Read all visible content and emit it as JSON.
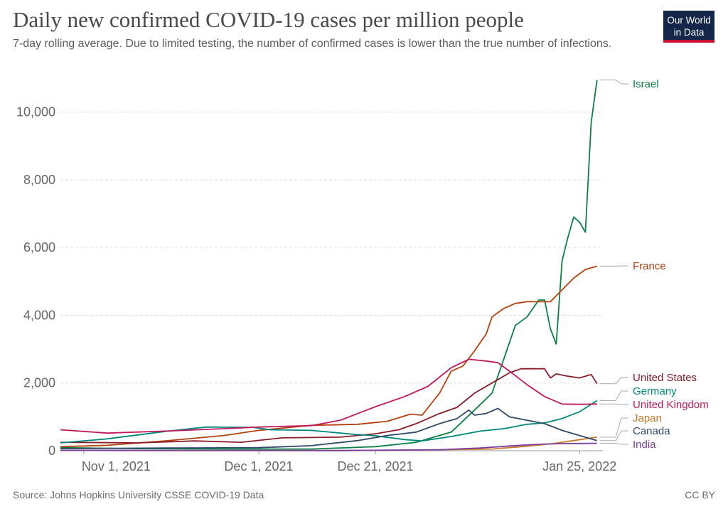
{
  "header": {
    "title": "Daily new confirmed COVID-19 cases per million people",
    "subtitle": "7-day rolling average. Due to limited testing, the number of confirmed cases is lower than the true number of infections.",
    "logo_line1": "Our World",
    "logo_line2": "in Data"
  },
  "footer": {
    "source": "Source: Johns Hopkins University CSSE COVID-19 Data",
    "license": "CC BY"
  },
  "colors": {
    "Israel": "#0b8043",
    "France": "#b5400e",
    "United States": "#8a1c2a",
    "Germany": "#00897b",
    "United Kingdom": "#c2185b",
    "Japan": "#c97a2a",
    "Canada": "#2e4a6b",
    "India": "#7b3fa0"
  },
  "chart_data": {
    "type": "line",
    "title": "Daily new confirmed COVID-19 cases per million people",
    "subtitle": "7-day rolling average. Due to limited testing, the number of confirmed cases is lower than the true number of infections.",
    "ylim": [
      0,
      11000
    ],
    "yticks": [
      0,
      2000,
      4000,
      6000,
      8000,
      10000
    ],
    "ytick_labels": [
      "0",
      "2,000",
      "4,000",
      "6,000",
      "8,000",
      "10,000"
    ],
    "xlim": [
      "2021-10-28",
      "2022-01-29"
    ],
    "xticks": [
      "2021-11-01",
      "2021-12-01",
      "2021-12-21",
      "2022-01-25"
    ],
    "xtick_labels": [
      "Nov 1, 2021",
      "Dec 1, 2021",
      "Dec 21, 2021",
      "Jan 25, 2022"
    ],
    "grid": true,
    "legend": "right end labels",
    "series": [
      {
        "name": "Israel",
        "points": [
          [
            "2021-10-28",
            90
          ],
          [
            "2021-11-10",
            60
          ],
          [
            "2021-11-25",
            50
          ],
          [
            "2021-12-10",
            50
          ],
          [
            "2021-12-21",
            120
          ],
          [
            "2021-12-28",
            250
          ],
          [
            "2022-01-03",
            550
          ],
          [
            "2022-01-07",
            1200
          ],
          [
            "2022-01-10",
            1700
          ],
          [
            "2022-01-12",
            2700
          ],
          [
            "2022-01-14",
            3700
          ],
          [
            "2022-01-16",
            3950
          ],
          [
            "2022-01-18",
            4450
          ],
          [
            "2022-01-19",
            4450
          ],
          [
            "2022-01-20",
            3600
          ],
          [
            "2022-01-21",
            3150
          ],
          [
            "2022-01-22",
            5600
          ],
          [
            "2022-01-23",
            6300
          ],
          [
            "2022-01-24",
            6900
          ],
          [
            "2022-01-25",
            6750
          ],
          [
            "2022-01-26",
            6450
          ],
          [
            "2022-01-27",
            9700
          ],
          [
            "2022-01-28",
            10950
          ]
        ]
      },
      {
        "name": "France",
        "points": [
          [
            "2021-10-28",
            120
          ],
          [
            "2021-11-05",
            160
          ],
          [
            "2021-11-15",
            290
          ],
          [
            "2021-11-25",
            450
          ],
          [
            "2021-12-01",
            600
          ],
          [
            "2021-12-10",
            750
          ],
          [
            "2021-12-18",
            780
          ],
          [
            "2021-12-23",
            870
          ],
          [
            "2021-12-27",
            1080
          ],
          [
            "2021-12-29",
            1050
          ],
          [
            "2022-01-01",
            1700
          ],
          [
            "2022-01-03",
            2350
          ],
          [
            "2022-01-05",
            2500
          ],
          [
            "2022-01-07",
            2950
          ],
          [
            "2022-01-09",
            3450
          ],
          [
            "2022-01-10",
            3950
          ],
          [
            "2022-01-12",
            4200
          ],
          [
            "2022-01-14",
            4350
          ],
          [
            "2022-01-16",
            4400
          ],
          [
            "2022-01-18",
            4400
          ],
          [
            "2022-01-20",
            4400
          ],
          [
            "2022-01-22",
            4750
          ],
          [
            "2022-01-24",
            5100
          ],
          [
            "2022-01-26",
            5350
          ],
          [
            "2022-01-28",
            5450
          ]
        ]
      },
      {
        "name": "United States",
        "points": [
          [
            "2021-10-28",
            250
          ],
          [
            "2021-11-10",
            230
          ],
          [
            "2021-11-20",
            290
          ],
          [
            "2021-11-28",
            250
          ],
          [
            "2021-12-05",
            380
          ],
          [
            "2021-12-15",
            400
          ],
          [
            "2021-12-21",
            500
          ],
          [
            "2021-12-25",
            620
          ],
          [
            "2021-12-28",
            800
          ],
          [
            "2022-01-01",
            1100
          ],
          [
            "2022-01-04",
            1280
          ],
          [
            "2022-01-07",
            1700
          ],
          [
            "2022-01-10",
            2000
          ],
          [
            "2022-01-13",
            2300
          ],
          [
            "2022-01-15",
            2420
          ],
          [
            "2022-01-19",
            2420
          ],
          [
            "2022-01-20",
            2150
          ],
          [
            "2022-01-21",
            2270
          ],
          [
            "2022-01-23",
            2200
          ],
          [
            "2022-01-25",
            2150
          ],
          [
            "2022-01-27",
            2250
          ],
          [
            "2022-01-28",
            1980
          ]
        ]
      },
      {
        "name": "Germany",
        "points": [
          [
            "2021-10-28",
            230
          ],
          [
            "2021-11-05",
            350
          ],
          [
            "2021-11-15",
            570
          ],
          [
            "2021-11-22",
            700
          ],
          [
            "2021-11-30",
            690
          ],
          [
            "2021-12-03",
            620
          ],
          [
            "2021-12-10",
            600
          ],
          [
            "2021-12-17",
            490
          ],
          [
            "2021-12-21",
            440
          ],
          [
            "2021-12-26",
            330
          ],
          [
            "2021-12-29",
            290
          ],
          [
            "2022-01-03",
            420
          ],
          [
            "2022-01-08",
            580
          ],
          [
            "2022-01-12",
            650
          ],
          [
            "2022-01-16",
            780
          ],
          [
            "2022-01-19",
            820
          ],
          [
            "2022-01-22",
            950
          ],
          [
            "2022-01-25",
            1150
          ],
          [
            "2022-01-28",
            1480
          ]
        ]
      },
      {
        "name": "United Kingdom",
        "points": [
          [
            "2021-10-28",
            620
          ],
          [
            "2021-11-05",
            520
          ],
          [
            "2021-11-15",
            580
          ],
          [
            "2021-11-25",
            650
          ],
          [
            "2021-12-01",
            700
          ],
          [
            "2021-12-10",
            740
          ],
          [
            "2021-12-15",
            900
          ],
          [
            "2021-12-21",
            1300
          ],
          [
            "2021-12-26",
            1600
          ],
          [
            "2021-12-30",
            1900
          ],
          [
            "2022-01-03",
            2450
          ],
          [
            "2022-01-06",
            2700
          ],
          [
            "2022-01-09",
            2650
          ],
          [
            "2022-01-11",
            2600
          ],
          [
            "2022-01-13",
            2350
          ],
          [
            "2022-01-16",
            1950
          ],
          [
            "2022-01-19",
            1600
          ],
          [
            "2022-01-22",
            1380
          ],
          [
            "2022-01-25",
            1370
          ],
          [
            "2022-01-28",
            1380
          ]
        ]
      },
      {
        "name": "Japan",
        "points": [
          [
            "2021-10-28",
            10
          ],
          [
            "2021-11-15",
            5
          ],
          [
            "2021-12-15",
            5
          ],
          [
            "2022-01-01",
            30
          ],
          [
            "2022-01-10",
            50
          ],
          [
            "2022-01-15",
            120
          ],
          [
            "2022-01-20",
            200
          ],
          [
            "2022-01-24",
            300
          ],
          [
            "2022-01-28",
            400
          ]
        ]
      },
      {
        "name": "Canada",
        "points": [
          [
            "2021-10-28",
            60
          ],
          [
            "2021-11-15",
            80
          ],
          [
            "2021-12-01",
            90
          ],
          [
            "2021-12-10",
            150
          ],
          [
            "2021-12-18",
            300
          ],
          [
            "2021-12-23",
            450
          ],
          [
            "2021-12-28",
            550
          ],
          [
            "2022-01-01",
            800
          ],
          [
            "2022-01-04",
            950
          ],
          [
            "2022-01-06",
            1200
          ],
          [
            "2022-01-07",
            1050
          ],
          [
            "2022-01-09",
            1100
          ],
          [
            "2022-01-11",
            1250
          ],
          [
            "2022-01-13",
            1000
          ],
          [
            "2022-01-16",
            900
          ],
          [
            "2022-01-19",
            800
          ],
          [
            "2022-01-22",
            600
          ],
          [
            "2022-01-25",
            450
          ],
          [
            "2022-01-28",
            300
          ]
        ]
      },
      {
        "name": "India",
        "points": [
          [
            "2021-10-28",
            10
          ],
          [
            "2021-11-15",
            8
          ],
          [
            "2021-12-15",
            6
          ],
          [
            "2022-01-01",
            30
          ],
          [
            "2022-01-08",
            80
          ],
          [
            "2022-01-13",
            140
          ],
          [
            "2022-01-18",
            190
          ],
          [
            "2022-01-22",
            210
          ],
          [
            "2022-01-25",
            215
          ],
          [
            "2022-01-28",
            220
          ]
        ]
      }
    ]
  }
}
